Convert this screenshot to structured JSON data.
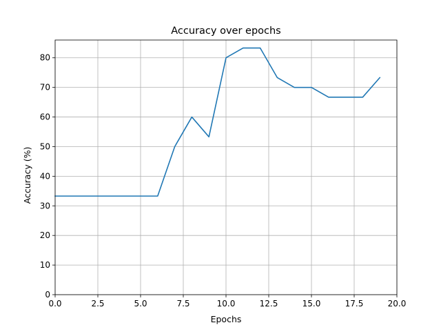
{
  "chart_data": {
    "type": "line",
    "title": "Accuracy over epochs",
    "xlabel": "Epochs",
    "ylabel": "Accuracy (%)",
    "xlim": [
      0,
      20
    ],
    "ylim": [
      0,
      86
    ],
    "xticks": [
      0,
      2.5,
      5,
      7.5,
      10,
      12.5,
      15,
      17.5,
      20
    ],
    "xtick_labels": [
      "0.0",
      "2.5",
      "5.0",
      "7.5",
      "10.0",
      "12.5",
      "15.0",
      "17.5",
      "20.0"
    ],
    "yticks": [
      0,
      10,
      20,
      30,
      40,
      50,
      60,
      70,
      80
    ],
    "ytick_labels": [
      "0",
      "10",
      "20",
      "30",
      "40",
      "50",
      "60",
      "70",
      "80"
    ],
    "grid": true,
    "series": [
      {
        "color": "#1f77b4",
        "x": [
          0,
          1,
          2,
          3,
          4,
          5,
          6,
          7,
          8,
          9,
          10,
          11,
          12,
          13,
          14,
          15,
          16,
          17,
          18,
          19
        ],
        "y": [
          33.3,
          33.3,
          33.3,
          33.3,
          33.3,
          33.3,
          33.3,
          50.0,
          60.0,
          53.3,
          80.0,
          83.3,
          83.3,
          73.3,
          70.0,
          70.0,
          66.7,
          66.7,
          66.7,
          73.3
        ]
      }
    ]
  }
}
